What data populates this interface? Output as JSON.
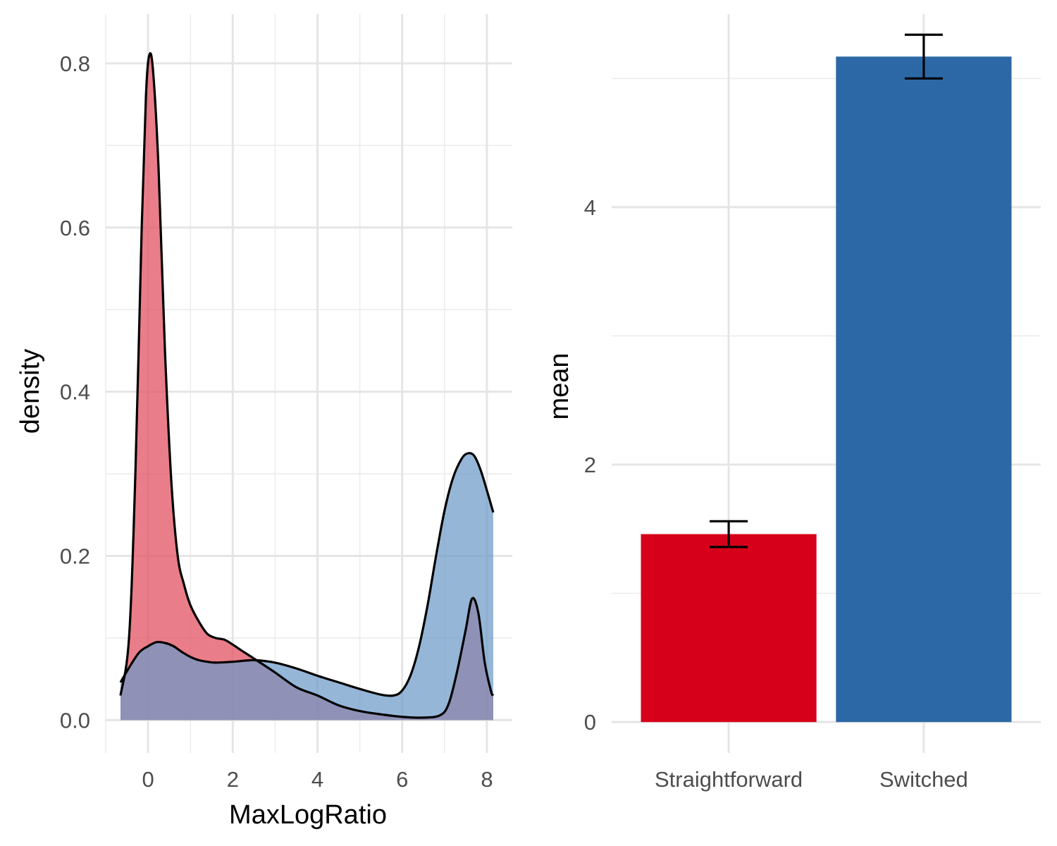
{
  "chart_data": [
    {
      "type": "area",
      "subtype": "density",
      "xlabel": "MaxLogRatio",
      "ylabel": "density",
      "xlim": [
        -1.0,
        8.6
      ],
      "ylim": [
        -0.04,
        0.86
      ],
      "x_ticks": [
        0,
        2,
        4,
        6,
        8
      ],
      "x_tick_labels": [
        "0",
        "2",
        "4",
        "6",
        "8"
      ],
      "y_ticks": [
        0.0,
        0.2,
        0.4,
        0.6,
        0.8
      ],
      "y_tick_labels": [
        "0.0",
        "0.2",
        "0.4",
        "0.6",
        "0.8"
      ],
      "grid": true,
      "legend": "none",
      "series": [
        {
          "color": "#e15261",
          "fill_opacity": 0.75,
          "points": [
            [
              -0.65,
              0.03
            ],
            [
              -0.45,
              0.1
            ],
            [
              -0.3,
              0.3
            ],
            [
              -0.15,
              0.6
            ],
            [
              -0.05,
              0.76
            ],
            [
              0.03,
              0.81
            ],
            [
              0.12,
              0.79
            ],
            [
              0.25,
              0.67
            ],
            [
              0.4,
              0.45
            ],
            [
              0.55,
              0.29
            ],
            [
              0.7,
              0.2
            ],
            [
              0.85,
              0.165
            ],
            [
              1.0,
              0.14
            ],
            [
              1.2,
              0.12
            ],
            [
              1.4,
              0.105
            ],
            [
              1.6,
              0.1
            ],
            [
              1.8,
              0.098
            ],
            [
              2.0,
              0.092
            ],
            [
              2.2,
              0.085
            ],
            [
              2.5,
              0.075
            ],
            [
              3.0,
              0.058
            ],
            [
              3.5,
              0.04
            ],
            [
              4.0,
              0.03
            ],
            [
              4.5,
              0.018
            ],
            [
              5.0,
              0.011
            ],
            [
              5.5,
              0.007
            ],
            [
              6.0,
              0.004
            ],
            [
              6.5,
              0.003
            ],
            [
              6.9,
              0.006
            ],
            [
              7.1,
              0.02
            ],
            [
              7.3,
              0.06
            ],
            [
              7.5,
              0.11
            ],
            [
              7.65,
              0.148
            ],
            [
              7.8,
              0.13
            ],
            [
              7.95,
              0.07
            ],
            [
              8.1,
              0.035
            ],
            [
              8.15,
              0.03
            ]
          ]
        },
        {
          "color": "#6c9ac8",
          "fill_opacity": 0.72,
          "points": [
            [
              -0.65,
              0.046
            ],
            [
              -0.4,
              0.068
            ],
            [
              -0.2,
              0.083
            ],
            [
              0.0,
              0.09
            ],
            [
              0.2,
              0.095
            ],
            [
              0.4,
              0.094
            ],
            [
              0.6,
              0.09
            ],
            [
              0.8,
              0.083
            ],
            [
              1.0,
              0.077
            ],
            [
              1.2,
              0.073
            ],
            [
              1.4,
              0.071
            ],
            [
              1.6,
              0.07
            ],
            [
              2.0,
              0.071
            ],
            [
              2.5,
              0.073
            ],
            [
              3.0,
              0.07
            ],
            [
              3.5,
              0.063
            ],
            [
              4.0,
              0.054
            ],
            [
              4.5,
              0.046
            ],
            [
              5.0,
              0.038
            ],
            [
              5.5,
              0.031
            ],
            [
              5.8,
              0.03
            ],
            [
              6.0,
              0.036
            ],
            [
              6.2,
              0.055
            ],
            [
              6.4,
              0.09
            ],
            [
              6.6,
              0.14
            ],
            [
              6.8,
              0.2
            ],
            [
              7.0,
              0.255
            ],
            [
              7.2,
              0.295
            ],
            [
              7.4,
              0.318
            ],
            [
              7.55,
              0.325
            ],
            [
              7.7,
              0.322
            ],
            [
              7.85,
              0.305
            ],
            [
              8.0,
              0.28
            ],
            [
              8.15,
              0.253
            ]
          ]
        }
      ]
    },
    {
      "type": "bar",
      "categories": [
        "Straightforward",
        "Switched"
      ],
      "values": [
        1.46,
        5.17
      ],
      "error_low": [
        1.36,
        5.0
      ],
      "error_high": [
        1.56,
        5.34
      ],
      "colors": [
        "#d7001a",
        "#2d68a6"
      ],
      "xlabel": "",
      "ylabel": "mean",
      "ylim": [
        -0.24,
        5.5
      ],
      "y_ticks": [
        0,
        2,
        4
      ],
      "y_tick_labels": [
        "0",
        "2",
        "4"
      ],
      "grid": true,
      "legend": "none"
    }
  ]
}
